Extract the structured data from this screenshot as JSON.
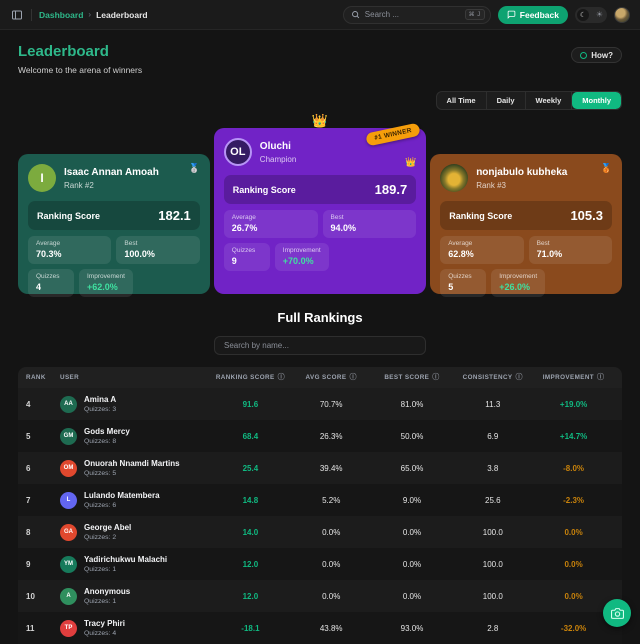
{
  "icons": {
    "info": "ⓘ",
    "moon": "☾",
    "sun": "☀",
    "command_shortcut": "⌘ J"
  },
  "navbar": {
    "breadcrumb": {
      "root": "Dashboard",
      "separator": "›",
      "current": "Leaderboard"
    },
    "search": {
      "placeholder": "Search ..."
    },
    "feedback_label": "Feedback"
  },
  "header": {
    "title": "Leaderboard",
    "subtitle": "Welcome to the arena of winners",
    "how_label": "How?"
  },
  "filters": {
    "tabs": [
      "All Time",
      "Daily",
      "Weekly",
      "Monthly"
    ],
    "active": "Monthly"
  },
  "podium": {
    "score_label": "Ranking Score",
    "winner_badge": "#1 WINNER",
    "crown_glyph": "👑",
    "cards": [
      {
        "theme": "green",
        "initials": "I",
        "name": "Isaac Annan Amoah",
        "rank_label": "Rank #2",
        "medal_glyph": "🥈",
        "score": "182.1",
        "stats": {
          "average_label": "Average",
          "average": "70.3%",
          "best_label": "Best",
          "best": "100.0%",
          "quizzes_label": "Quizzes",
          "quizzes": "4",
          "improvement_label": "Improvement",
          "improvement": "+62.0%"
        }
      },
      {
        "theme": "purple",
        "initials": "OL",
        "name": "Oluchi",
        "rank_label": "Champion",
        "medal_glyph": "👑",
        "score": "189.7",
        "is_winner": true,
        "stats": {
          "average_label": "Average",
          "average": "26.7%",
          "best_label": "Best",
          "best": "94.0%",
          "quizzes_label": "Quizzes",
          "quizzes": "9",
          "improvement_label": "Improvement",
          "improvement": "+70.0%"
        }
      },
      {
        "theme": "orange",
        "initials": "",
        "photo": true,
        "name": "nonjabulo kubheka",
        "rank_label": "Rank #3",
        "medal_glyph": "🥉",
        "score": "105.3",
        "stats": {
          "average_label": "Average",
          "average": "62.8%",
          "best_label": "Best",
          "best": "71.0%",
          "quizzes_label": "Quizzes",
          "quizzes": "5",
          "improvement_label": "Improvement",
          "improvement": "+26.0%"
        }
      }
    ]
  },
  "rankings": {
    "title": "Full Rankings",
    "search_placeholder": "Search by name...",
    "columns": [
      {
        "label": "Rank",
        "info": false
      },
      {
        "label": "User",
        "info": false
      },
      {
        "label": "Ranking Score",
        "info": true
      },
      {
        "label": "Avg Score",
        "info": true
      },
      {
        "label": "Best Score",
        "info": true
      },
      {
        "label": "Consistency",
        "info": true
      },
      {
        "label": "Improvement",
        "info": true
      }
    ],
    "rows": [
      {
        "rank": "4",
        "initials": "AA",
        "avatar_color": "#1e6b51",
        "name": "Amina A",
        "quizzes": "Quizzes: 3",
        "score": "91.6",
        "avg": "70.7%",
        "best": "81.0%",
        "consistency": "11.3",
        "improvement": "+19.0%",
        "trend": "up"
      },
      {
        "rank": "5",
        "initials": "GM",
        "avatar_color": "#1e6b51",
        "name": "Gods Mercy",
        "quizzes": "Quizzes: 8",
        "score": "68.4",
        "avg": "26.3%",
        "best": "50.0%",
        "consistency": "6.9",
        "improvement": "+14.7%",
        "trend": "up"
      },
      {
        "rank": "6",
        "initials": "OM",
        "avatar_color": "#e0482e",
        "name": "Onuorah Nnamdi Martins",
        "quizzes": "Quizzes: 5",
        "score": "25.4",
        "avg": "39.4%",
        "best": "65.0%",
        "consistency": "3.8",
        "improvement": "-8.0%",
        "trend": "down"
      },
      {
        "rank": "7",
        "initials": "L",
        "avatar_color": "#6366f1",
        "name": "Lulando Matembera",
        "quizzes": "Quizzes: 6",
        "score": "14.8",
        "avg": "5.2%",
        "best": "9.0%",
        "consistency": "25.6",
        "improvement": "-2.3%",
        "trend": "down"
      },
      {
        "rank": "8",
        "initials": "GA",
        "avatar_color": "#e0482e",
        "name": "George Abel",
        "quizzes": "Quizzes: 2",
        "score": "14.0",
        "avg": "0.0%",
        "best": "0.0%",
        "consistency": "100.0",
        "improvement": "0.0%",
        "trend": "down"
      },
      {
        "rank": "9",
        "initials": "YM",
        "avatar_color": "#177a5b",
        "name": "Yadirichukwu Malachi",
        "quizzes": "Quizzes: 1",
        "score": "12.0",
        "avg": "0.0%",
        "best": "0.0%",
        "consistency": "100.0",
        "improvement": "0.0%",
        "trend": "down"
      },
      {
        "rank": "10",
        "initials": "A",
        "avatar_color": "#2f8f5e",
        "name": "Anonymous",
        "quizzes": "Quizzes: 1",
        "score": "12.0",
        "avg": "0.0%",
        "best": "0.0%",
        "consistency": "100.0",
        "improvement": "0.0%",
        "trend": "down"
      },
      {
        "rank": "11",
        "initials": "TP",
        "avatar_color": "#e03e3e",
        "name": "Tracy Phiri",
        "quizzes": "Quizzes: 4",
        "score": "-18.1",
        "avg": "43.8%",
        "best": "93.0%",
        "consistency": "2.8",
        "improvement": "-32.0%",
        "trend": "down"
      }
    ]
  },
  "colors": {
    "accent": "#10b981",
    "positive": "#10b981",
    "negative": "#c8820b"
  }
}
